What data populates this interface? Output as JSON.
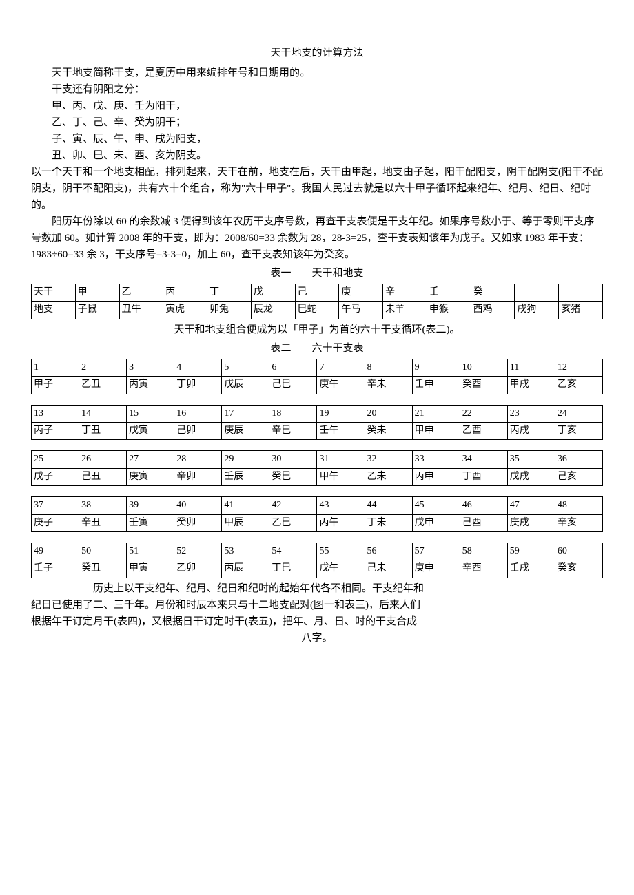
{
  "title": "天干地支的计算方法",
  "intro": {
    "p1": "天干地支简称干支，是夏历中用来编排年号和日期用的。",
    "p2": "干支还有阴阳之分：",
    "p3": "甲、丙、戊、庚、壬为阳干，",
    "p4": "乙、丁、己、辛、癸为阴干；",
    "p5": "子、寅、辰、午、申、戌为阳支，",
    "p6": "丑、卯、巳、未、酉、亥为阴支。",
    "p7": "以一个天干和一个地支相配，排列起来，天干在前，地支在后，天干由甲起，地支由子起，阳干配阳支，阴干配阴支(阳干不配阴支，阴干不配阳支)，共有六十个组合，称为\"六十甲子\"。我国人民过去就是以六十甲子循环起来纪年、纪月、纪日、纪时的。",
    "p8": "阳历年份除以 60 的余数减 3 便得到该年农历干支序号数，再查干支表便是干支年纪。如果序号数小于、等于零则干支序号数加 60。如计算 2008 年的干支，即为：2008/60=33 余数为 28，28-3=25，查干支表知该年为戊子。又如求 1983 年干支：1983÷60=33 余 3，干支序号=3-3=0，加上 60，查干支表知该年为癸亥。"
  },
  "table1": {
    "caption": "表一  天干和地支",
    "row_stem_label": "天干",
    "row_branch_label": "地支",
    "stems": [
      "甲",
      "乙",
      "丙",
      "丁",
      "戊",
      "己",
      "庚",
      "辛",
      "壬",
      "癸",
      "",
      ""
    ],
    "branches": [
      "子鼠",
      "丑牛",
      "寅虎",
      "卯兔",
      "辰龙",
      "巳蛇",
      "午马",
      "未羊",
      "申猴",
      "酉鸡",
      "戌狗",
      "亥猪"
    ],
    "footer": "天干和地支组合便成为以「甲子」为首的六十干支循环(表二)。"
  },
  "table2": {
    "caption": "表二  六十干支表",
    "blocks": [
      {
        "nums": [
          "1",
          "2",
          "3",
          "4",
          "5",
          "6",
          "7",
          "8",
          "9",
          "10",
          "11",
          "12"
        ],
        "names": [
          "甲子",
          "乙丑",
          "丙寅",
          "丁卯",
          "戊辰",
          "己巳",
          "庚午",
          "辛未",
          "壬申",
          "癸酉",
          "甲戌",
          "乙亥"
        ]
      },
      {
        "nums": [
          "13",
          "14",
          "15",
          "16",
          "17",
          "18",
          "19",
          "20",
          "21",
          "22",
          "23",
          "24"
        ],
        "names": [
          "丙子",
          "丁丑",
          "戊寅",
          "己卯",
          "庚辰",
          "辛巳",
          "壬午",
          "癸未",
          "甲申",
          "乙酉",
          "丙戌",
          "丁亥"
        ]
      },
      {
        "nums": [
          "25",
          "26",
          "27",
          "28",
          "29",
          "30",
          "31",
          "32",
          "33",
          "34",
          "35",
          "36"
        ],
        "names": [
          "戊子",
          "己丑",
          "庚寅",
          "辛卯",
          "壬辰",
          "癸巳",
          "甲午",
          "乙未",
          "丙申",
          "丁酉",
          "戊戌",
          "己亥"
        ]
      },
      {
        "nums": [
          "37",
          "38",
          "39",
          "40",
          "41",
          "42",
          "43",
          "44",
          "45",
          "46",
          "47",
          "48"
        ],
        "names": [
          "庚子",
          "辛丑",
          "壬寅",
          "癸卯",
          "甲辰",
          "乙巳",
          "丙午",
          "丁未",
          "戊申",
          "己酉",
          "庚戌",
          "辛亥"
        ]
      },
      {
        "nums": [
          "49",
          "50",
          "51",
          "52",
          "53",
          "54",
          "55",
          "56",
          "57",
          "58",
          "59",
          "60"
        ],
        "names": [
          "壬子",
          "癸丑",
          "甲寅",
          "乙卯",
          "丙辰",
          "丁巳",
          "戊午",
          "己未",
          "庚申",
          "辛酉",
          "壬戌",
          "癸亥"
        ]
      }
    ]
  },
  "footer": {
    "p1": "历史上以干支纪年、纪月、纪日和纪时的起始年代各不相同。干支纪年和",
    "p2": "纪日已使用了二、三千年。月份和时辰本来只与十二地支配对(图一和表三)，后来人们",
    "p3": "根据年干订定月干(表四)，又根据日干订定时干(表五)，把年、月、日、时的干支合成",
    "p4": "八字。"
  }
}
